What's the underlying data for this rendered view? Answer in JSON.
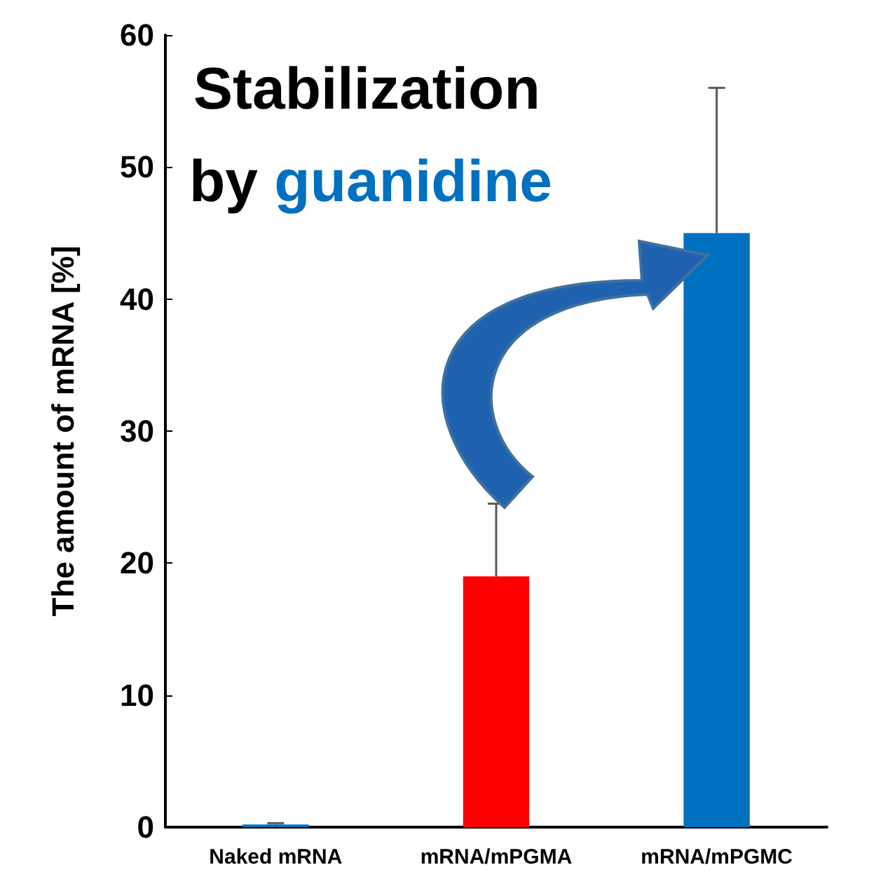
{
  "chart_data": {
    "type": "bar",
    "ylabel": "The amount of mRNA [%]",
    "categories": [
      "Naked mRNA",
      "mRNA/mPGMA",
      "mRNA/mPGMC"
    ],
    "values": [
      0.2,
      19,
      45
    ],
    "colors": [
      "#0070c0",
      "#ff0000",
      "#0070c0"
    ],
    "errors": [
      [
        0.2,
        0.3
      ],
      [
        19,
        24.5
      ],
      [
        45,
        56
      ]
    ],
    "ylim": [
      0,
      60
    ],
    "yticks": [
      0,
      10,
      20,
      30,
      40,
      50,
      60
    ],
    "grid": false,
    "annotations": [
      "Stabilization",
      "by guanidine"
    ]
  }
}
